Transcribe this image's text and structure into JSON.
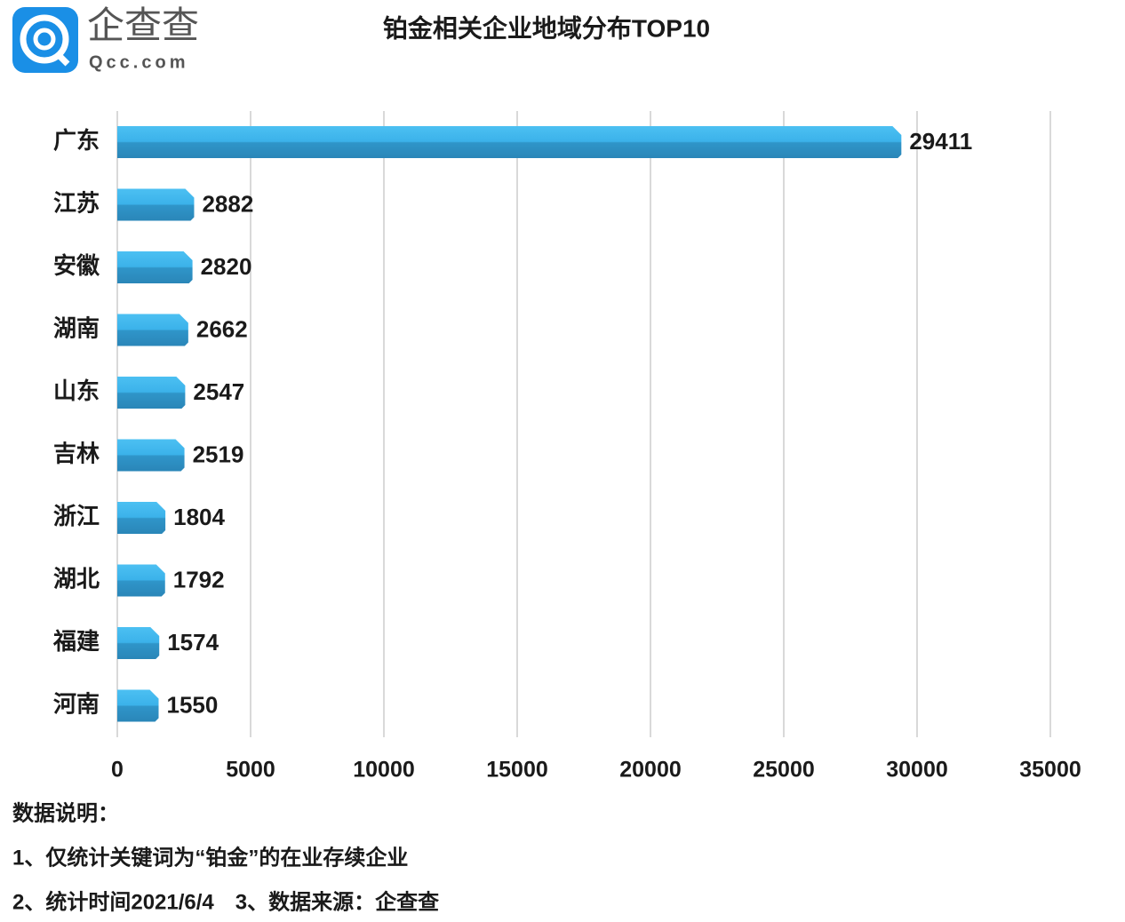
{
  "logo": {
    "name": "企查查",
    "domain": "Qcc.com"
  },
  "chart_data": {
    "type": "hbar",
    "title": "铂金相关企业地域分布TOP10",
    "categories": [
      "广东",
      "江苏",
      "安徽",
      "湖南",
      "山东",
      "吉林",
      "浙江",
      "湖北",
      "福建",
      "河南"
    ],
    "values": [
      29411,
      2882,
      2820,
      2662,
      2547,
      2519,
      1804,
      1792,
      1574,
      1550
    ],
    "color": "#3bb2ea",
    "xlim": [
      0,
      35000
    ],
    "xticks": [
      0,
      5000,
      10000,
      15000,
      20000,
      25000,
      30000,
      35000
    ],
    "grid": true
  },
  "notes": [
    "数据说明：",
    "1、仅统计关键词为“铂金”的在业存续企业",
    "2、统计时间2021/6/4　3、数据来源：企查查"
  ]
}
